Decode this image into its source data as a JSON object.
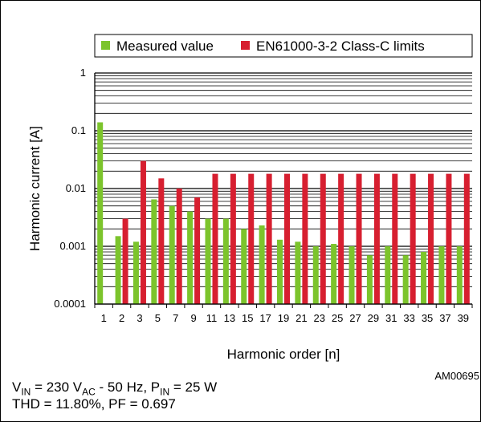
{
  "chart_data": {
    "type": "bar",
    "categories": [
      "1",
      "2",
      "3",
      "5",
      "7",
      "9",
      "11",
      "13",
      "15",
      "17",
      "19",
      "21",
      "23",
      "25",
      "27",
      "29",
      "31",
      "33",
      "35",
      "37",
      "39"
    ],
    "series": [
      {
        "name": "Measured value",
        "color": "#7cc42c",
        "values": [
          0.14,
          0.0015,
          0.0012,
          0.0065,
          0.005,
          0.004,
          0.003,
          0.003,
          0.002,
          0.0023,
          0.0013,
          0.0012,
          0.001,
          0.0011,
          0.001,
          0.0007,
          0.001,
          0.0007,
          0.0008,
          0.001,
          0.001
        ]
      },
      {
        "name": "EN61000-3-2 Class-C limits",
        "color": "#d71f30",
        "values": [
          null,
          0.003,
          0.03,
          0.015,
          0.01,
          0.007,
          0.018,
          0.018,
          0.018,
          0.018,
          0.018,
          0.018,
          0.018,
          0.018,
          0.018,
          0.018,
          0.018,
          0.018,
          0.018,
          0.018,
          0.018
        ]
      }
    ],
    "yscale": "log",
    "ylim": [
      0.0001,
      1
    ],
    "yticks": [
      "1",
      "0.1",
      "0.01",
      "0.001",
      "0.0001"
    ],
    "ylabel": "Harmonic current [A]",
    "xlabel": "Harmonic order [n]",
    "legend_position": "top",
    "grid": true
  },
  "figure_code": "AM00695",
  "footnote": {
    "line1": {
      "v": "V",
      "v_sub": "IN",
      "v_val": " = 230 V",
      "ac": "AC",
      "rest": " - 50 Hz, P",
      "p_sub": "IN",
      "p_val": " = 25 W"
    },
    "line2": "THD = 11.80%, PF = 0.697"
  }
}
